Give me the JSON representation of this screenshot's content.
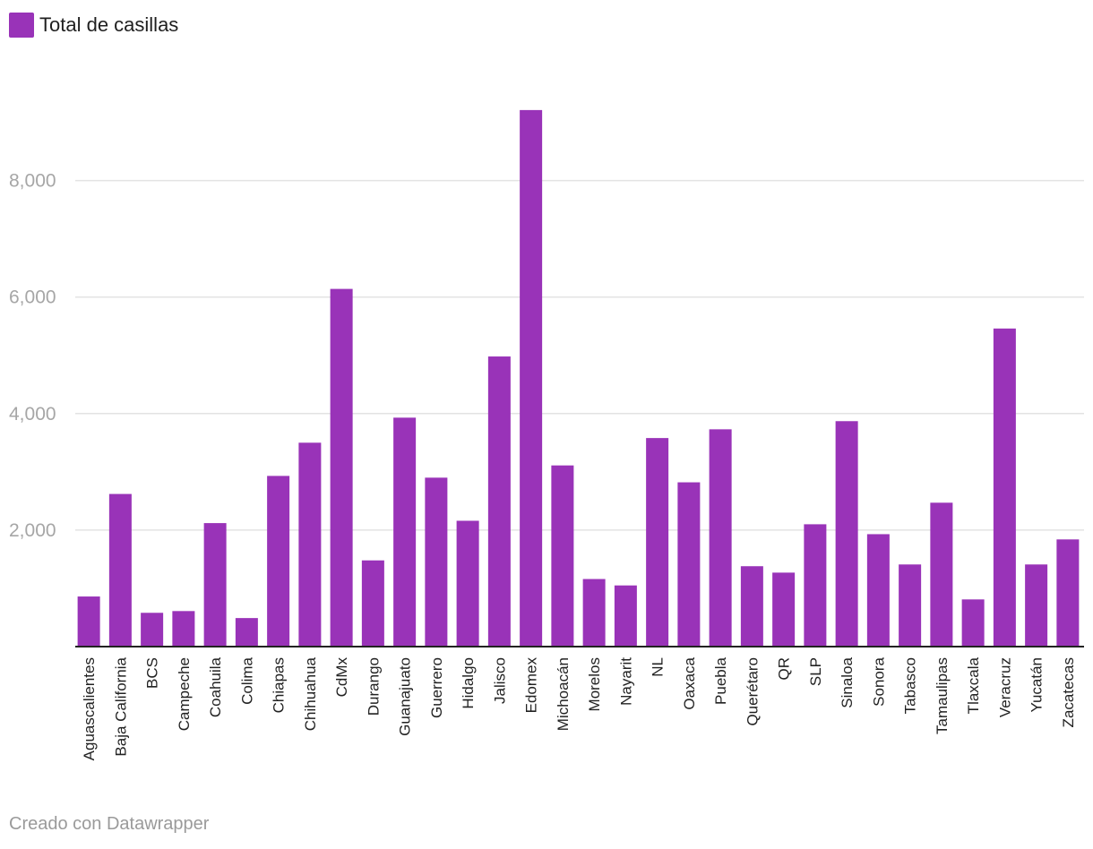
{
  "legend": {
    "label": "Total de casillas"
  },
  "footer": {
    "credit": "Creado con Datawrapper"
  },
  "colors": {
    "bar": "#9933b8",
    "grid": "#e3e3e3",
    "axis": "#222222"
  },
  "chart_data": {
    "type": "bar",
    "title": "",
    "xlabel": "",
    "ylabel": "",
    "ylim": [
      0,
      9200
    ],
    "yticks": [
      2000,
      4000,
      6000,
      8000
    ],
    "ytick_labels": [
      "2,000",
      "4,000",
      "6,000",
      "8,000"
    ],
    "grid": true,
    "legend_position": "top-left",
    "series": [
      {
        "name": "Total de casillas"
      }
    ],
    "categories": [
      "Aguascalientes",
      "Baja California",
      "BCS",
      "Campeche",
      "Coahuila",
      "Colima",
      "Chiapas",
      "Chihuahua",
      "CdMx",
      "Durango",
      "Guanajuato",
      "Guerrero",
      "Hidalgo",
      "Jalisco",
      "Edomex",
      "Michoacán",
      "Morelos",
      "Nayarit",
      "NL",
      "Oaxaca",
      "Puebla",
      "Querétaro",
      "QR",
      "SLP",
      "Sinaloa",
      "Sonora",
      "Tabasco",
      "Tamaulipas",
      "Tlaxcala",
      "Veracruz",
      "Yucatán",
      "Zacatecas"
    ],
    "values": [
      860,
      2620,
      580,
      610,
      2120,
      490,
      2930,
      3500,
      6140,
      1480,
      3930,
      2900,
      2160,
      4980,
      9210,
      3110,
      1160,
      1050,
      3580,
      2820,
      3730,
      1380,
      1270,
      2100,
      3870,
      1930,
      1410,
      2470,
      810,
      5460,
      1410,
      1840
    ]
  }
}
